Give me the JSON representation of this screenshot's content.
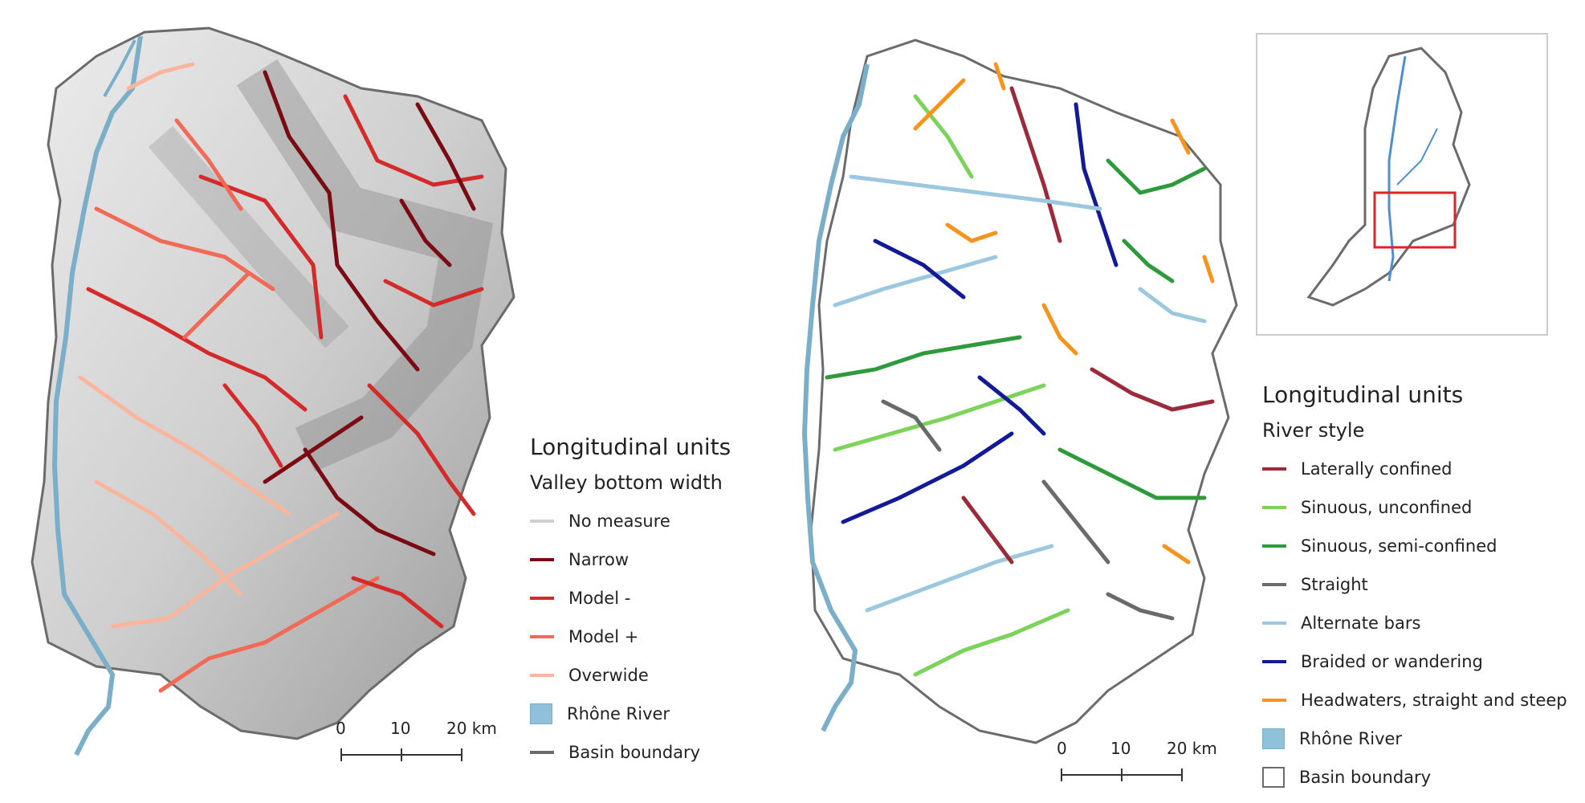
{
  "left_map": {
    "legend": {
      "title": "Longitudinal units",
      "subtitle": "Valley bottom width",
      "items": [
        {
          "label": "No measure",
          "kind": "line",
          "color": "#cfcfcf"
        },
        {
          "label": "Narrow",
          "kind": "line",
          "color": "#7a0b12"
        },
        {
          "label": "Model -",
          "kind": "line",
          "color": "#d42a2a"
        },
        {
          "label": "Model +",
          "kind": "line",
          "color": "#f26a55"
        },
        {
          "label": "Overwide",
          "kind": "line",
          "color": "#fbb59c"
        },
        {
          "label": "Rhône River",
          "kind": "box",
          "color": "#8fc1da"
        },
        {
          "label": "Basin boundary",
          "kind": "line",
          "color": "#6b6b6b"
        }
      ]
    },
    "scalebar": {
      "ticks": [
        "0",
        "10",
        "20 km"
      ]
    }
  },
  "right_map": {
    "legend": {
      "title": "Longitudinal units",
      "subtitle": "River style",
      "items": [
        {
          "label": "Laterally confined",
          "kind": "line",
          "color": "#9b2a3a"
        },
        {
          "label": "Sinuous, unconfined",
          "kind": "line",
          "color": "#7bd35a"
        },
        {
          "label": "Sinuous, semi-confined",
          "kind": "line",
          "color": "#2e9a3c"
        },
        {
          "label": "Straight",
          "kind": "line",
          "color": "#6a6a6a"
        },
        {
          "label": "Alternate bars",
          "kind": "line",
          "color": "#9cc8df"
        },
        {
          "label": "Braided or wandering",
          "kind": "line",
          "color": "#121a96"
        },
        {
          "label": "Headwaters, straight and steep",
          "kind": "line",
          "color": "#f7941d"
        },
        {
          "label": "Rhône River",
          "kind": "box",
          "color": "#8fc1da"
        },
        {
          "label": "Basin boundary",
          "kind": "hollow",
          "color": "#6b6b6b"
        }
      ]
    },
    "scalebar": {
      "ticks": [
        "0",
        "10",
        "20 km"
      ]
    }
  },
  "colors": {
    "river": "#7aaec9",
    "boundary": "#6b6b6b",
    "inset_box": "#e02424",
    "hillshade": "#dcdcdc"
  }
}
